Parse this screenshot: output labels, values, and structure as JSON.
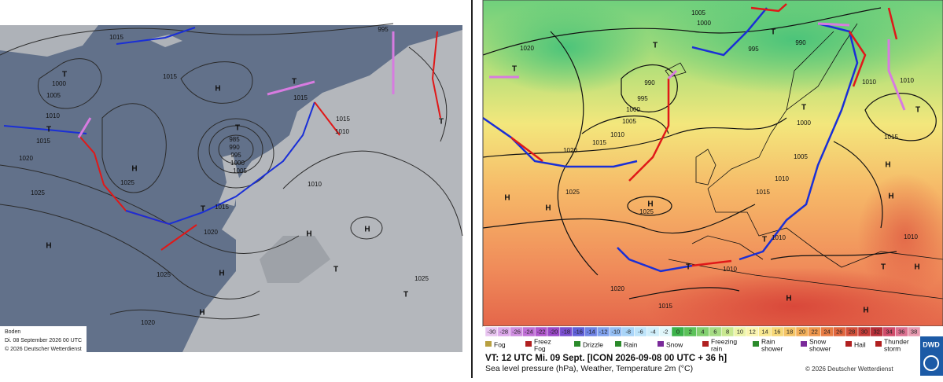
{
  "left_map": {
    "isobar_labels": [
      "1015",
      "995",
      "1000",
      "1005",
      "1010",
      "1015",
      "1020",
      "1025",
      "1015",
      "1015",
      "985",
      "990",
      "995",
      "1000",
      "1005",
      "1010",
      "1015",
      "1020",
      "1025",
      "1025",
      "1020",
      "1025",
      "1015",
      "1010"
    ],
    "pressure_centers": [
      "T",
      "T",
      "H",
      "H",
      "T",
      "T",
      "T",
      "H",
      "H",
      "H",
      "H",
      "T",
      "H",
      "T",
      "T"
    ],
    "caption": [
      "Boden",
      "Di. 08 September 2026 00 UTC",
      "© 2026 Deutscher Wetterdienst"
    ]
  },
  "right_map": {
    "isobar_labels": [
      "1005",
      "1000",
      "1020",
      "990",
      "995",
      "990",
      "995",
      "1000",
      "1005",
      "1010",
      "1015",
      "1020",
      "1025",
      "1025",
      "1010",
      "1010",
      "1000",
      "1005",
      "1010",
      "1015",
      "1010",
      "1015",
      "1020",
      "1015",
      "1010",
      "1010"
    ],
    "pressure_centers": [
      "T",
      "T",
      "T",
      "T",
      "T",
      "H",
      "H",
      "H",
      "H",
      "H",
      "T",
      "T",
      "H",
      "H",
      "T",
      "H"
    ],
    "temperature_scale": [
      -30,
      -28,
      -26,
      -24,
      -22,
      -20,
      -18,
      -16,
      -14,
      -12,
      -10,
      -8,
      -6,
      -4,
      -2,
      0,
      2,
      4,
      6,
      8,
      10,
      12,
      14,
      16,
      18,
      20,
      22,
      24,
      26,
      28,
      30,
      32,
      34,
      36,
      38
    ],
    "weather_legend": [
      {
        "lines": [
          "Fog"
        ]
      },
      {
        "lines": [
          "Freez",
          "Fog"
        ]
      },
      {
        "lines": [
          "Drizzle"
        ]
      },
      {
        "lines": [
          "Rain"
        ]
      },
      {
        "lines": [
          "Snow"
        ]
      },
      {
        "lines": [
          "Freezing",
          "rain"
        ]
      },
      {
        "lines": [
          "Rain",
          "shower"
        ]
      },
      {
        "lines": [
          "Snow",
          "shower"
        ]
      },
      {
        "lines": [
          "Hail"
        ]
      },
      {
        "lines": [
          "Thunder",
          "storm"
        ]
      }
    ],
    "valid_time": "VT: 12 UTC Mi.  09 Sept. [ICON 2026-09-08  00 UTC + 36 h]",
    "description": "Sea level pressure (hPa), Weather, Temperature 2m (°C)",
    "copyright": "© 2026 Deutscher Wetterdienst",
    "logo": "DWD"
  }
}
